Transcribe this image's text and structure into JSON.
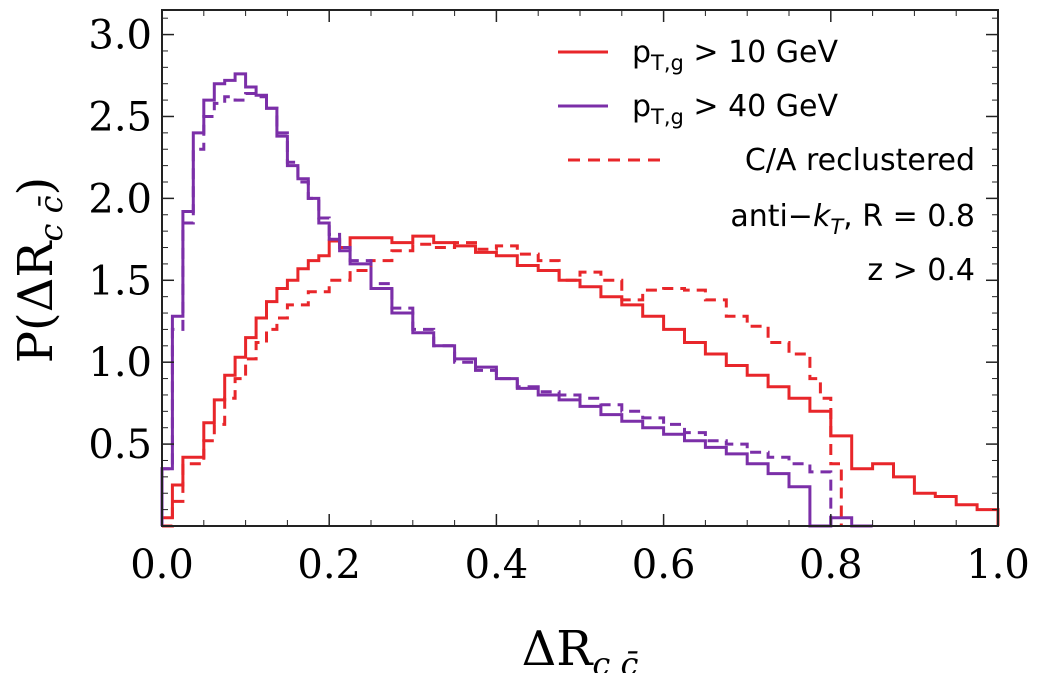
{
  "chart_data": {
    "type": "line",
    "style": "step-histogram",
    "xlabel": {
      "base": "ΔR",
      "sub": "c c̄"
    },
    "ylabel": {
      "base": "P(ΔR",
      "sub": "c c̄",
      "close": ")"
    },
    "xlim": [
      0.0,
      1.0
    ],
    "ylim": [
      0.0,
      3.15
    ],
    "xticks": [
      "0.0",
      "0.2",
      "0.4",
      "0.6",
      "0.8",
      "1.0"
    ],
    "xtick_values": [
      0.0,
      0.2,
      0.4,
      0.6,
      0.8,
      1.0
    ],
    "yticks": [
      "0.5",
      "1.0",
      "1.5",
      "2.0",
      "2.5",
      "3.0"
    ],
    "ytick_values": [
      0.5,
      1.0,
      1.5,
      2.0,
      2.5,
      3.0
    ],
    "grid": false,
    "frame": true,
    "bin_width": 0.0125,
    "colors": {
      "red": "#e8262a",
      "purple": "#7b2fa8"
    },
    "legend": {
      "position": "top-right",
      "entries": [
        {
          "pre": "p",
          "sub": "T,g",
          "post": " > 10 GeV",
          "color": "#e8262a",
          "dash": "solid"
        },
        {
          "pre": "p",
          "sub": "T,g",
          "post": " > 40 GeV",
          "color": "#7b2fa8",
          "dash": "solid"
        },
        {
          "pre": "C/A reclustered",
          "sub": "",
          "post": "",
          "color": "#e8262a",
          "dash": "dashed"
        }
      ],
      "annotations": [
        {
          "pre": "anti−",
          "italic": "k",
          "sub": "T",
          "post": ", R = 0.8"
        },
        {
          "pre": "z > 0.4",
          "italic": "",
          "sub": "",
          "post": ""
        }
      ]
    },
    "series": [
      {
        "name": "pT,g > 10 GeV",
        "color": "#e8262a",
        "dash": "solid",
        "edges": [
          0.0,
          0.0125,
          0.025,
          0.05,
          0.0625,
          0.075,
          0.0875,
          0.1,
          0.1125,
          0.125,
          0.1375,
          0.15,
          0.1625,
          0.175,
          0.1875,
          0.2,
          0.2125,
          0.225,
          0.25,
          0.275,
          0.3,
          0.325,
          0.35,
          0.375,
          0.4,
          0.425,
          0.45,
          0.475,
          0.5,
          0.525,
          0.55,
          0.575,
          0.6,
          0.625,
          0.65,
          0.675,
          0.7,
          0.725,
          0.75,
          0.775,
          0.8,
          0.825,
          0.85,
          0.875,
          0.9,
          0.925,
          0.95,
          0.975,
          1.0
        ],
        "values": [
          0.05,
          0.25,
          0.42,
          0.63,
          0.77,
          0.92,
          1.03,
          1.15,
          1.27,
          1.37,
          1.45,
          1.5,
          1.57,
          1.62,
          1.65,
          1.74,
          1.7,
          1.76,
          1.76,
          1.73,
          1.77,
          1.73,
          1.71,
          1.67,
          1.65,
          1.59,
          1.56,
          1.5,
          1.46,
          1.4,
          1.35,
          1.28,
          1.2,
          1.12,
          1.05,
          0.98,
          0.92,
          0.85,
          0.78,
          0.7,
          0.55,
          0.35,
          0.38,
          0.3,
          0.2,
          0.18,
          0.13,
          0.1
        ]
      },
      {
        "name": "pT,g > 40 GeV",
        "color": "#7b2fa8",
        "dash": "solid",
        "edges": [
          0.0,
          0.0125,
          0.025,
          0.0375,
          0.05,
          0.0625,
          0.075,
          0.0875,
          0.1,
          0.1125,
          0.125,
          0.1375,
          0.15,
          0.1625,
          0.175,
          0.1875,
          0.2,
          0.2125,
          0.225,
          0.25,
          0.275,
          0.3,
          0.325,
          0.35,
          0.375,
          0.4,
          0.425,
          0.45,
          0.475,
          0.5,
          0.525,
          0.55,
          0.575,
          0.6,
          0.625,
          0.65,
          0.675,
          0.7,
          0.725,
          0.75,
          0.775,
          0.8,
          0.825,
          0.85
        ],
        "values": [
          0.35,
          1.28,
          1.92,
          2.4,
          2.6,
          2.7,
          2.72,
          2.76,
          2.68,
          2.63,
          2.55,
          2.38,
          2.2,
          2.12,
          2.0,
          1.85,
          1.75,
          1.68,
          1.6,
          1.45,
          1.3,
          1.18,
          1.1,
          1.02,
          0.97,
          0.9,
          0.84,
          0.8,
          0.77,
          0.73,
          0.68,
          0.64,
          0.6,
          0.56,
          0.52,
          0.48,
          0.44,
          0.38,
          0.32,
          0.24,
          0.0,
          0.05,
          0.0
        ]
      },
      {
        "name": "C/A reclustered (pT,g > 10 GeV)",
        "color": "#e8262a",
        "dash": "dashed",
        "edges": [
          0.0,
          0.0125,
          0.025,
          0.05,
          0.0625,
          0.075,
          0.0875,
          0.1,
          0.1125,
          0.125,
          0.1375,
          0.15,
          0.175,
          0.2,
          0.225,
          0.25,
          0.275,
          0.3,
          0.325,
          0.35,
          0.375,
          0.4,
          0.425,
          0.45,
          0.475,
          0.5,
          0.525,
          0.55,
          0.575,
          0.6,
          0.625,
          0.65,
          0.675,
          0.7,
          0.725,
          0.75,
          0.775,
          0.7875,
          0.8,
          0.8125
        ],
        "values": [
          0.0,
          0.15,
          0.38,
          0.52,
          0.62,
          0.78,
          0.9,
          1.02,
          1.12,
          1.2,
          1.27,
          1.35,
          1.43,
          1.5,
          1.56,
          1.62,
          1.68,
          1.72,
          1.7,
          1.73,
          1.69,
          1.71,
          1.66,
          1.62,
          1.5,
          1.55,
          1.5,
          1.38,
          1.44,
          1.45,
          1.44,
          1.38,
          1.28,
          1.22,
          1.12,
          1.05,
          0.9,
          0.78,
          0.38
        ]
      },
      {
        "name": "C/A reclustered (pT,g > 40 GeV)",
        "color": "#7b2fa8",
        "dash": "dashed",
        "edges": [
          0.0,
          0.0125,
          0.025,
          0.0375,
          0.05,
          0.0625,
          0.075,
          0.0875,
          0.1,
          0.1125,
          0.125,
          0.1375,
          0.15,
          0.1625,
          0.175,
          0.1875,
          0.2,
          0.2125,
          0.225,
          0.25,
          0.275,
          0.3,
          0.325,
          0.35,
          0.375,
          0.4,
          0.425,
          0.45,
          0.475,
          0.5,
          0.525,
          0.55,
          0.575,
          0.6,
          0.625,
          0.65,
          0.675,
          0.7,
          0.725,
          0.75,
          0.775,
          0.8
        ],
        "values": [
          0.35,
          1.2,
          1.85,
          2.3,
          2.5,
          2.58,
          2.62,
          2.6,
          2.64,
          2.62,
          2.55,
          2.4,
          2.22,
          2.1,
          2.0,
          1.88,
          1.78,
          1.7,
          1.62,
          1.48,
          1.33,
          1.2,
          1.1,
          1.0,
          0.95,
          0.9,
          0.85,
          0.82,
          0.8,
          0.78,
          0.74,
          0.7,
          0.66,
          0.62,
          0.57,
          0.52,
          0.5,
          0.45,
          0.42,
          0.38,
          0.33
        ]
      }
    ]
  }
}
